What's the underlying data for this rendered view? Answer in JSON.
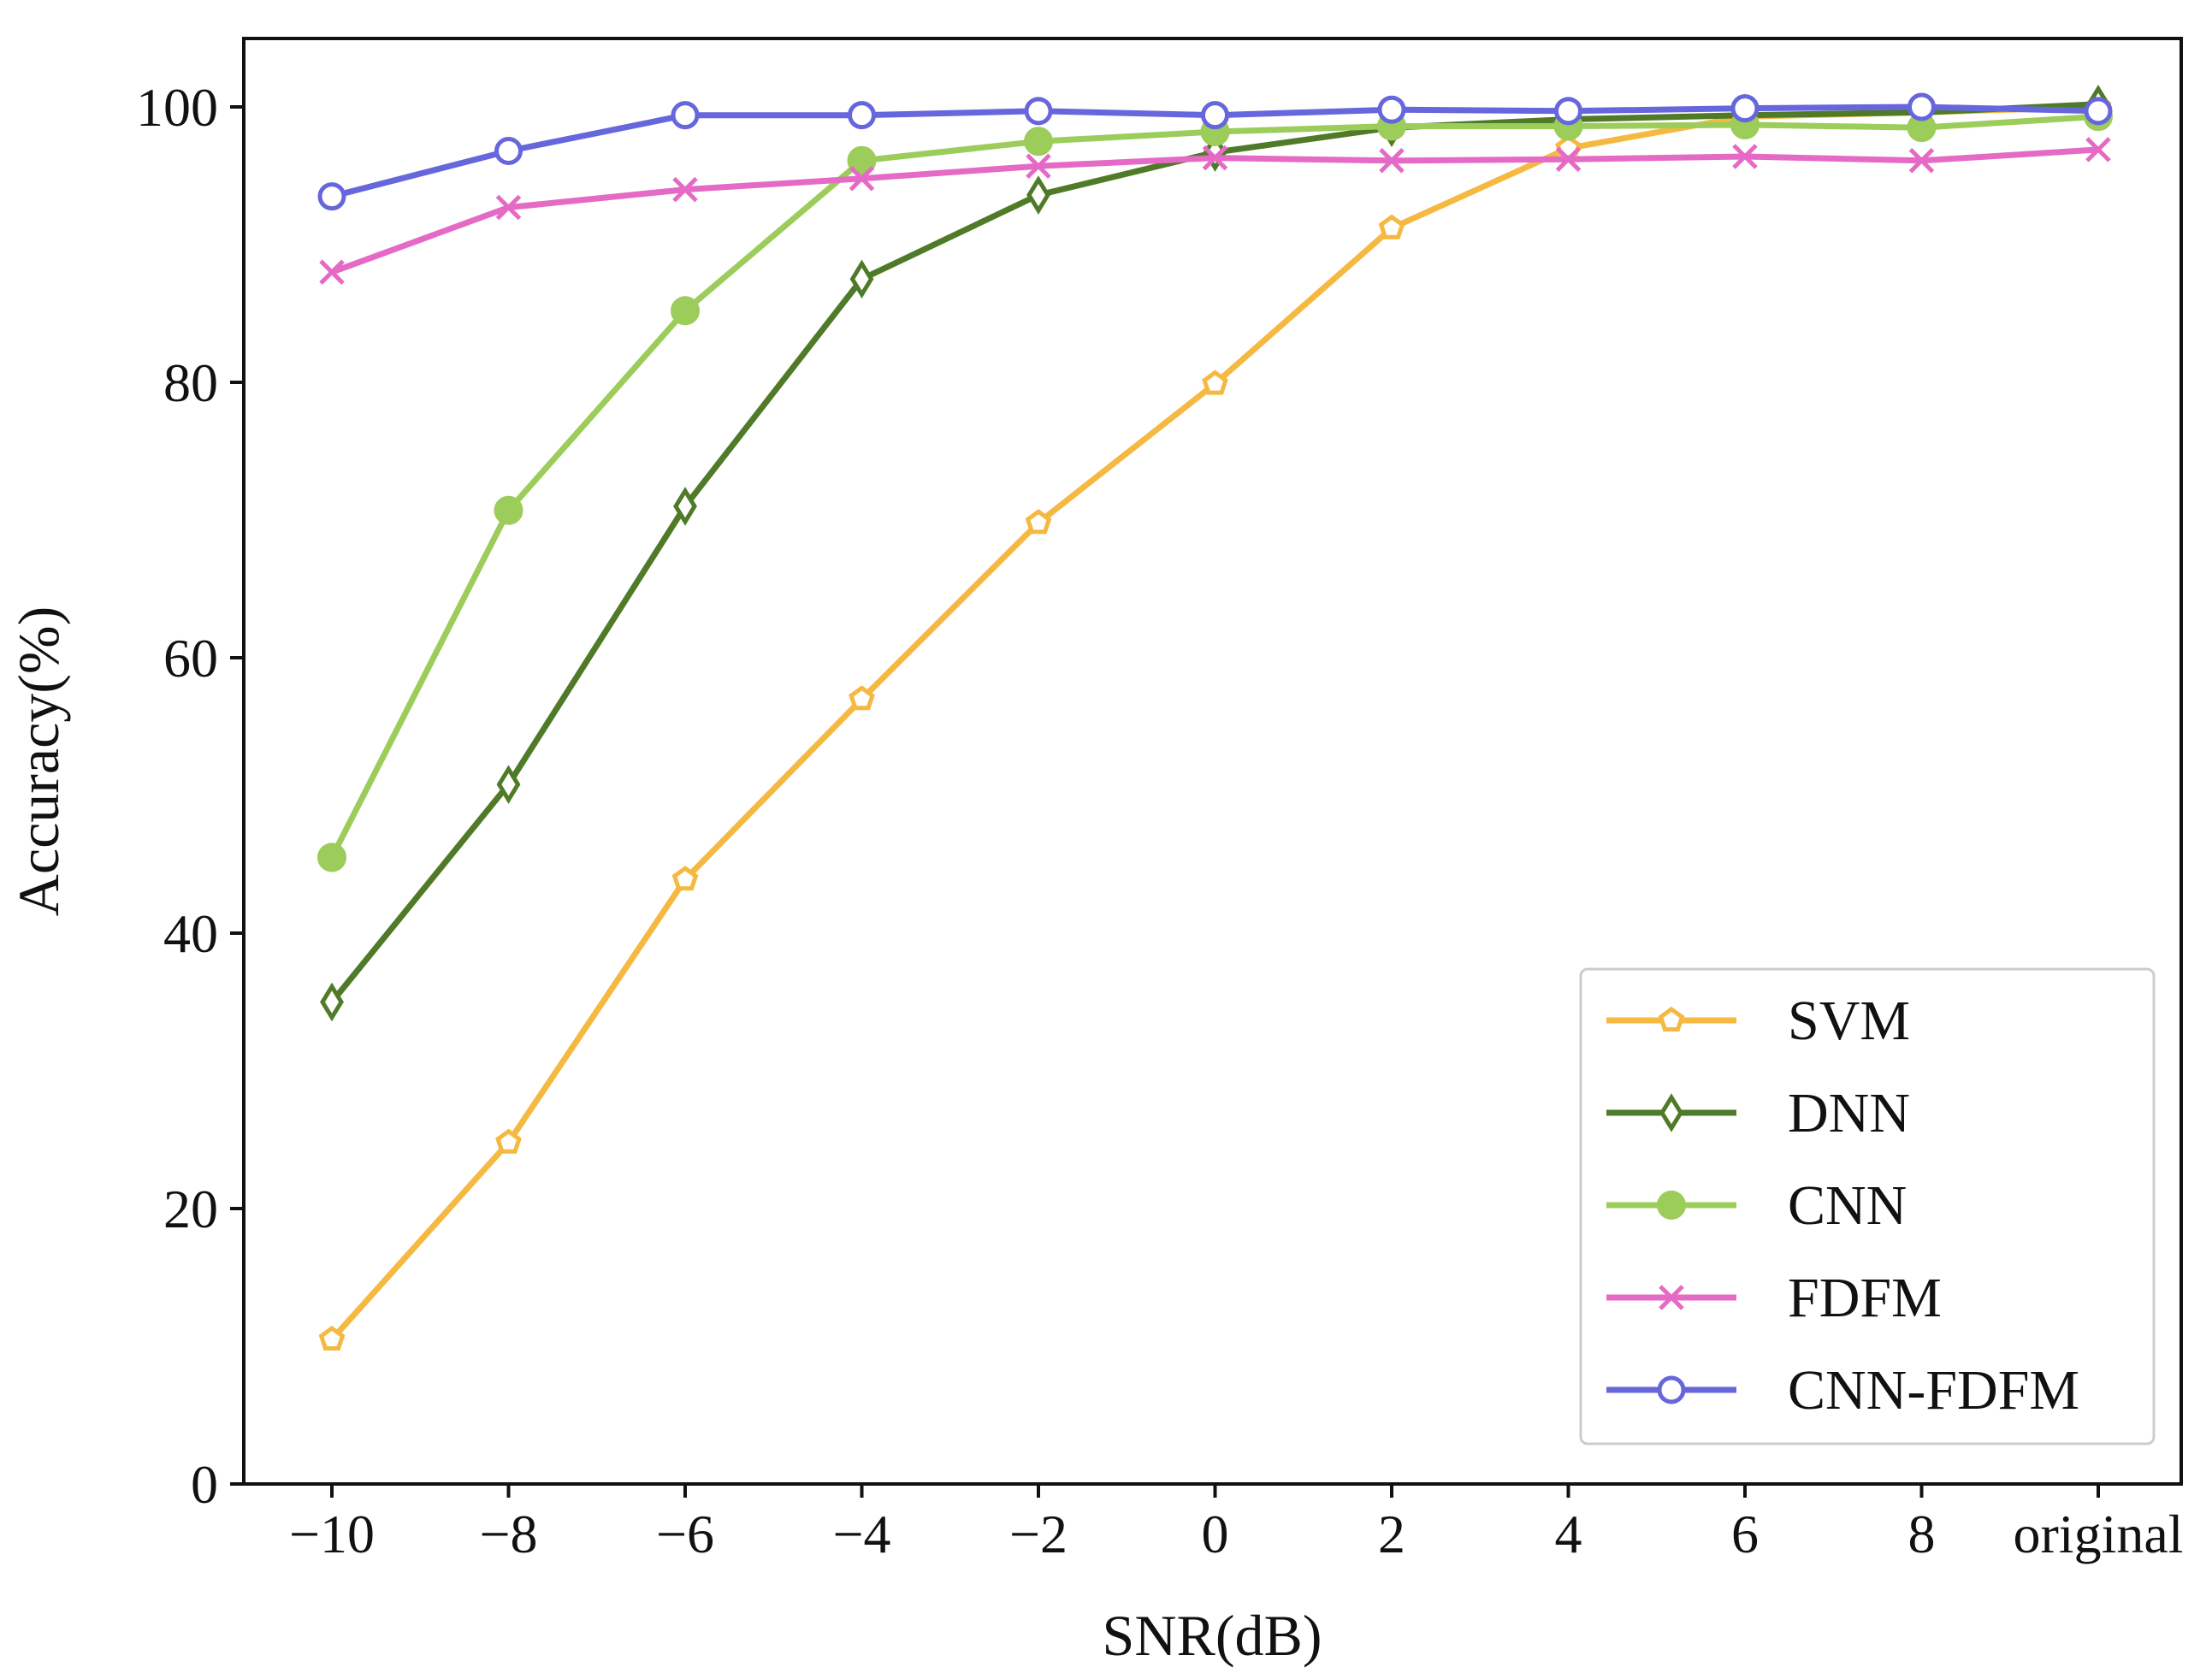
{
  "chart_data": {
    "type": "line",
    "title": "",
    "xlabel": "SNR(dB)",
    "ylabel": "Accuracy(%)",
    "categories": [
      "−10",
      "−8",
      "−6",
      "−4",
      "−2",
      "0",
      "2",
      "4",
      "6",
      "8",
      "original"
    ],
    "ylim": [
      0,
      100
    ],
    "yticks": [
      "0",
      "20",
      "40",
      "60",
      "80",
      "100"
    ],
    "grid": false,
    "legend_position": "bottom-right",
    "series": [
      {
        "name": "SVM",
        "color": "#f5b942",
        "marker": "pentagon-open",
        "values": [
          10.5,
          24.8,
          43.9,
          57.0,
          69.8,
          79.9,
          91.2,
          97.0,
          99.3,
          99.6,
          100.0
        ]
      },
      {
        "name": "DNN",
        "color": "#4f7a28",
        "marker": "diamond-open",
        "values": [
          35.0,
          50.8,
          71.0,
          87.5,
          93.6,
          96.7,
          98.5,
          99.1,
          99.4,
          99.6,
          100.2
        ]
      },
      {
        "name": "CNN",
        "color": "#9ccc5a",
        "marker": "circle-filled",
        "values": [
          45.5,
          70.7,
          85.2,
          96.1,
          97.5,
          98.2,
          98.6,
          98.6,
          98.7,
          98.5,
          99.3
        ]
      },
      {
        "name": "FDFM",
        "color": "#e56ac6",
        "marker": "x",
        "values": [
          88.0,
          92.7,
          94.0,
          94.8,
          95.7,
          96.3,
          96.1,
          96.2,
          96.4,
          96.1,
          96.9
        ]
      },
      {
        "name": "CNN-FDFM",
        "color": "#6666dd",
        "marker": "circle-open",
        "values": [
          93.5,
          96.8,
          99.4,
          99.4,
          99.7,
          99.4,
          99.8,
          99.7,
          99.9,
          100.0,
          99.7
        ]
      }
    ]
  }
}
